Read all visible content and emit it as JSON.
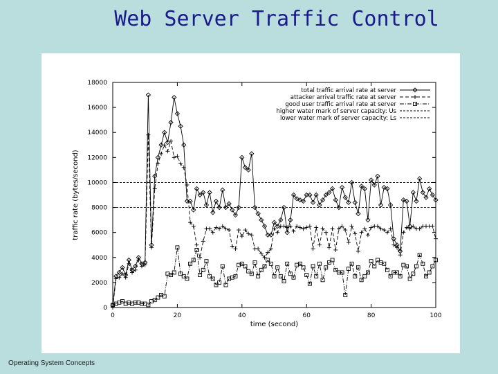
{
  "slide": {
    "title": "Web Server Traffic Control",
    "footer": "Operating System Concepts"
  },
  "chart_data": {
    "type": "line",
    "xlabel": "time (second)",
    "ylabel": "traffic rate (bytes/second)",
    "xlim": [
      0,
      100
    ],
    "ylim": [
      0,
      18000
    ],
    "xticks": [
      "0",
      "20",
      "40",
      "60",
      "80",
      "100"
    ],
    "yticks": [
      "0",
      "2000",
      "4000",
      "6000",
      "8000",
      "10000",
      "12000",
      "14000",
      "16000",
      "18000"
    ],
    "grid": false,
    "legend_position": "top-right",
    "series": [
      {
        "name": "total traffic arrival rate at server",
        "marker": "diamond",
        "dash": "solid",
        "x": [
          0,
          1,
          2,
          3,
          4,
          5,
          6,
          7,
          8,
          9,
          10,
          11,
          12,
          13,
          14,
          15,
          16,
          17,
          18,
          19,
          20,
          21,
          22,
          23,
          24,
          25,
          26,
          27,
          28,
          29,
          30,
          31,
          32,
          33,
          34,
          35,
          36,
          37,
          38,
          39,
          40,
          41,
          42,
          43,
          44,
          45,
          46,
          47,
          48,
          49,
          50,
          51,
          52,
          53,
          54,
          55,
          56,
          57,
          58,
          59,
          60,
          61,
          62,
          63,
          64,
          65,
          66,
          67,
          68,
          69,
          70,
          71,
          72,
          73,
          74,
          75,
          76,
          77,
          78,
          79,
          80,
          81,
          82,
          83,
          84,
          85,
          86,
          87,
          88,
          89,
          90,
          91,
          92,
          93,
          94,
          95,
          96,
          97,
          98,
          99,
          100
        ],
        "y": [
          200,
          2500,
          2800,
          3200,
          2600,
          3800,
          3000,
          3300,
          4000,
          3500,
          3600,
          17000,
          5000,
          10500,
          12000,
          13000,
          14000,
          13200,
          14800,
          16800,
          15500,
          14500,
          13000,
          8500,
          8500,
          7800,
          9500,
          9000,
          9200,
          8200,
          9200,
          7600,
          8500,
          8000,
          9400,
          8000,
          8300,
          7800,
          7400,
          8000,
          12000,
          11200,
          11000,
          12300,
          8000,
          7500,
          7000,
          6500,
          5800,
          5800,
          6800,
          6500,
          7000,
          8000,
          6000,
          7000,
          9000,
          8700,
          8600,
          8500,
          9000,
          9000,
          8400,
          9000,
          8200,
          8600,
          9000,
          9200,
          9500,
          8600,
          8000,
          9600,
          8800,
          8400,
          10000,
          8400,
          7500,
          9700,
          9500,
          7000,
          10200,
          9800,
          10500,
          8200,
          9600,
          9500,
          8200,
          5500,
          5000,
          4500,
          8600,
          8500,
          6500,
          9200,
          8500,
          10300,
          9200,
          8800,
          9500,
          9000,
          8600
        ]
      },
      {
        "name": "attacker arrival traffic rate at server",
        "marker": "plus",
        "dash": "dash",
        "x": [
          0,
          1,
          2,
          3,
          4,
          5,
          6,
          7,
          8,
          9,
          10,
          11,
          12,
          13,
          14,
          15,
          16,
          17,
          18,
          19,
          20,
          21,
          22,
          23,
          24,
          25,
          26,
          27,
          28,
          29,
          30,
          31,
          32,
          33,
          34,
          35,
          36,
          37,
          38,
          39,
          40,
          41,
          42,
          43,
          44,
          45,
          46,
          47,
          48,
          49,
          50,
          51,
          52,
          53,
          54,
          55,
          56,
          57,
          58,
          59,
          60,
          61,
          62,
          63,
          64,
          65,
          66,
          67,
          68,
          69,
          70,
          71,
          72,
          73,
          74,
          75,
          76,
          77,
          78,
          79,
          80,
          81,
          82,
          83,
          84,
          85,
          86,
          87,
          88,
          89,
          90,
          91,
          92,
          93,
          94,
          95,
          96,
          97,
          98,
          99,
          100
        ],
        "y": [
          0,
          2300,
          2400,
          2700,
          2400,
          3500,
          2800,
          3000,
          3800,
          3300,
          3400,
          13800,
          4800,
          9500,
          11500,
          12300,
          13000,
          12500,
          13300,
          12000,
          12100,
          11500,
          11200,
          9800,
          6800,
          6500,
          5000,
          4000,
          5300,
          6300,
          6300,
          6000,
          6400,
          6300,
          6500,
          6300,
          6200,
          4900,
          4700,
          6200,
          5700,
          6200,
          5900,
          5800,
          4700,
          4700,
          4300,
          4000,
          4400,
          4700,
          6300,
          6000,
          6500,
          6500,
          6400,
          6500,
          6100,
          6500,
          6400,
          6300,
          6400,
          6500,
          4700,
          6400,
          5000,
          6300,
          6000,
          4800,
          6300,
          4600,
          6300,
          6500,
          6200,
          5200,
          6500,
          5900,
          4500,
          6000,
          6300,
          5800,
          6400,
          6500,
          6500,
          6300,
          6200,
          6000,
          6300,
          5000,
          4800,
          4200,
          6000,
          6400,
          6300,
          6500,
          6300,
          6300,
          6500,
          6500,
          6500,
          6500,
          5500
        ]
      },
      {
        "name": "good user traffic arrival rate at server",
        "marker": "square",
        "dash": "dashdot",
        "x": [
          0,
          1,
          2,
          3,
          4,
          5,
          6,
          7,
          8,
          9,
          10,
          11,
          12,
          13,
          14,
          15,
          16,
          17,
          18,
          19,
          20,
          21,
          22,
          23,
          24,
          25,
          26,
          27,
          28,
          29,
          30,
          31,
          32,
          33,
          34,
          35,
          36,
          37,
          38,
          39,
          40,
          41,
          42,
          43,
          44,
          45,
          46,
          47,
          48,
          49,
          50,
          51,
          52,
          53,
          54,
          55,
          56,
          57,
          58,
          59,
          60,
          61,
          62,
          63,
          64,
          65,
          66,
          67,
          68,
          69,
          70,
          71,
          72,
          73,
          74,
          75,
          76,
          77,
          78,
          79,
          80,
          81,
          82,
          83,
          84,
          85,
          86,
          87,
          88,
          89,
          90,
          91,
          92,
          93,
          94,
          95,
          96,
          97,
          98,
          99,
          100
        ],
        "y": [
          200,
          300,
          400,
          500,
          300,
          400,
          300,
          400,
          400,
          300,
          300,
          200,
          500,
          600,
          800,
          1000,
          900,
          2700,
          2600,
          2800,
          4800,
          2700,
          2500,
          2300,
          3500,
          3800,
          4600,
          2600,
          3000,
          3700,
          2500,
          2300,
          1800,
          2000,
          3300,
          1800,
          2300,
          2400,
          2500,
          3400,
          3500,
          3300,
          2900,
          2700,
          3600,
          2500,
          3000,
          3300,
          3800,
          3500,
          2500,
          3200,
          2500,
          2100,
          3500,
          2700,
          2400,
          3400,
          3500,
          3200,
          2600,
          1900,
          3300,
          2500,
          3500,
          2200,
          3200,
          3600,
          3800,
          3000,
          2800,
          2800,
          1000,
          3100,
          3500,
          2500,
          3200,
          2200,
          2500,
          2800,
          3700,
          3300,
          3800,
          3600,
          3500,
          3000,
          2500,
          2800,
          2800,
          2500,
          3400,
          3300,
          2300,
          2700,
          3300,
          4200,
          3500,
          2500,
          2800,
          3300,
          3800
        ]
      },
      {
        "name": "higher water mark of server capacity: Us",
        "marker": "none",
        "dash": "dense-dash",
        "x": [
          0,
          100
        ],
        "y": [
          10000,
          10000
        ]
      },
      {
        "name": "lower water mark of server capacity: Ls",
        "marker": "none",
        "dash": "dense-dash",
        "x": [
          0,
          100
        ],
        "y": [
          8000,
          8000
        ]
      }
    ]
  }
}
